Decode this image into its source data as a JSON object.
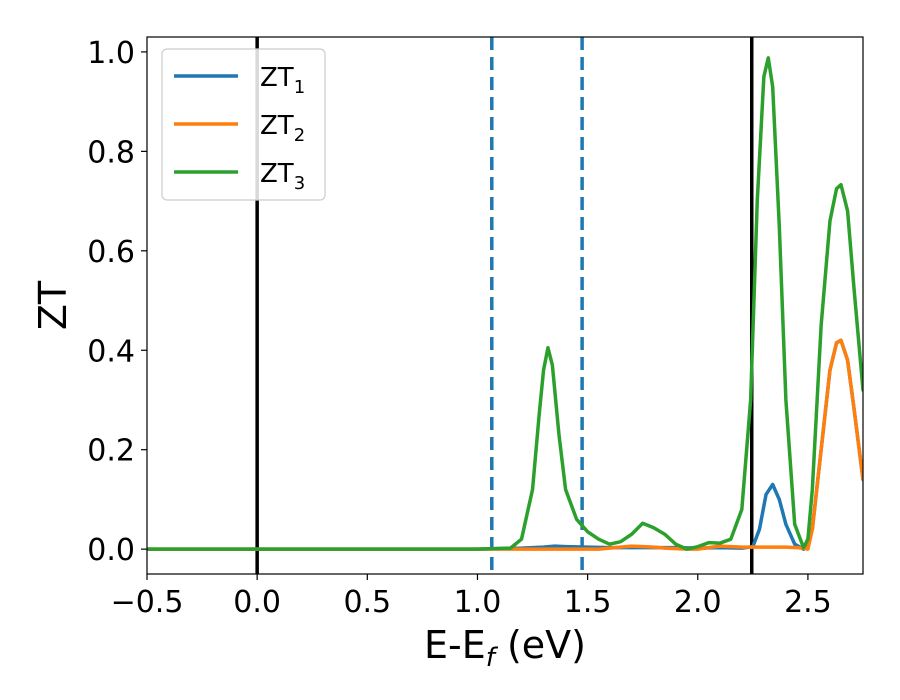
{
  "chart_data": {
    "type": "line",
    "xlabel": "E-E",
    "xlabel_sub": "f",
    "xlabel_unit": "(eV)",
    "ylabel": "ZT",
    "xlim": [
      -0.5,
      2.75
    ],
    "ylim": [
      -0.05,
      1.03
    ],
    "xticks": [
      -0.5,
      0.0,
      0.5,
      1.0,
      1.5,
      2.0,
      2.5
    ],
    "xtick_labels": [
      "−0.5",
      "0.0",
      "0.5",
      "1.0",
      "1.5",
      "2.0",
      "2.5"
    ],
    "yticks": [
      0.0,
      0.2,
      0.4,
      0.6,
      0.8,
      1.0
    ],
    "ytick_labels": [
      "0.0",
      "0.2",
      "0.4",
      "0.6",
      "0.8",
      "1.0"
    ],
    "grid": false,
    "legend_position": "top-left",
    "vlines": [
      {
        "x": 0.0,
        "style": "solid",
        "color": "#000000"
      },
      {
        "x": 1.065,
        "style": "dashed",
        "color": "#1f77b4"
      },
      {
        "x": 1.475,
        "style": "dashed",
        "color": "#1f77b4"
      },
      {
        "x": 2.245,
        "style": "solid",
        "color": "#000000"
      }
    ],
    "series": [
      {
        "name": "ZT",
        "name_sub": "1",
        "color": "#1f77b4",
        "x": [
          -0.5,
          1.0,
          1.2,
          1.3,
          1.35,
          1.4,
          1.5,
          1.6,
          1.7,
          1.8,
          1.9,
          2.0,
          2.1,
          2.2,
          2.25,
          2.28,
          2.31,
          2.34,
          2.37,
          2.4,
          2.44,
          2.48,
          2.52,
          2.56,
          2.6,
          2.63,
          2.65,
          2.68,
          2.71,
          2.75
        ],
        "y": [
          0.0,
          0.0,
          0.002,
          0.004,
          0.006,
          0.005,
          0.004,
          0.003,
          0.003,
          0.003,
          0.003,
          0.002,
          0.003,
          0.002,
          0.005,
          0.04,
          0.11,
          0.13,
          0.1,
          0.05,
          0.01,
          0.0,
          0.04,
          0.2,
          0.36,
          0.415,
          0.42,
          0.38,
          0.28,
          0.14
        ]
      },
      {
        "name": "ZT",
        "name_sub": "2",
        "color": "#ff7f0e",
        "x": [
          -0.5,
          1.0,
          1.2,
          1.4,
          1.55,
          1.6,
          1.65,
          1.7,
          1.75,
          1.8,
          1.85,
          1.9,
          1.95,
          2.0,
          2.05,
          2.1,
          2.2,
          2.3,
          2.4,
          2.45,
          2.48,
          2.5,
          2.52,
          2.56,
          2.6,
          2.63,
          2.65,
          2.68,
          2.71,
          2.75
        ],
        "y": [
          0.0,
          0.0,
          0.0,
          0.0,
          0.0,
          0.002,
          0.004,
          0.006,
          0.005,
          0.004,
          0.002,
          0.001,
          0.0,
          0.0,
          0.003,
          0.006,
          0.004,
          0.004,
          0.004,
          0.003,
          0.002,
          0.0,
          0.04,
          0.2,
          0.36,
          0.415,
          0.42,
          0.38,
          0.28,
          0.14
        ]
      },
      {
        "name": "ZT",
        "name_sub": "3",
        "color": "#2ca02c",
        "x": [
          -0.5,
          1.0,
          1.15,
          1.2,
          1.25,
          1.28,
          1.3,
          1.32,
          1.34,
          1.37,
          1.4,
          1.45,
          1.5,
          1.55,
          1.6,
          1.65,
          1.7,
          1.75,
          1.8,
          1.85,
          1.9,
          1.95,
          2.0,
          2.05,
          2.1,
          2.15,
          2.2,
          2.24,
          2.27,
          2.3,
          2.32,
          2.34,
          2.37,
          2.4,
          2.44,
          2.48,
          2.5,
          2.52,
          2.56,
          2.6,
          2.63,
          2.65,
          2.68,
          2.71,
          2.75
        ],
        "y": [
          0.0,
          0.0,
          0.002,
          0.02,
          0.12,
          0.27,
          0.36,
          0.405,
          0.37,
          0.23,
          0.12,
          0.06,
          0.035,
          0.02,
          0.01,
          0.015,
          0.03,
          0.052,
          0.043,
          0.03,
          0.01,
          0.0,
          0.005,
          0.013,
          0.012,
          0.02,
          0.08,
          0.3,
          0.7,
          0.95,
          0.988,
          0.93,
          0.65,
          0.3,
          0.05,
          0.003,
          0.02,
          0.12,
          0.45,
          0.66,
          0.725,
          0.733,
          0.68,
          0.52,
          0.32
        ]
      }
    ]
  }
}
